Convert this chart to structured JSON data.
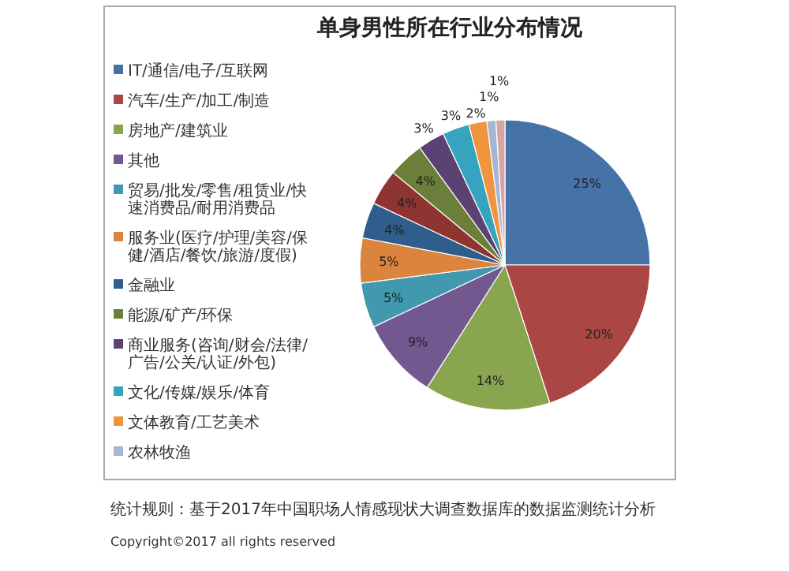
{
  "chart_data": {
    "type": "pie",
    "title": "单身男性所在行业分布情况",
    "legend": "left",
    "value_labels": [
      "25%",
      "20%",
      "14%",
      "9%",
      "5%",
      "5%",
      "4%",
      "4%",
      "4%",
      "3%",
      "3%",
      "2%",
      "1%",
      "1%"
    ],
    "categories": [
      "IT/通信/电子/互联网",
      "汽车/生产/加工/制造",
      "房地产/建筑业",
      "其他",
      "贸易/批发/零售/租赁业/快速消费品/耐用消费品",
      "服务业(医疗/护理/美容/保健/酒店/餐饮/旅游/度假)",
      "金融业",
      null,
      "能源/矿产/环保",
      "商业服务(咨询/财会/法律/广告/公关/认证/外包)",
      "文化/传媒/娱乐/体育",
      "文体教育/工艺美术",
      "农林牧渔",
      null
    ],
    "values": [
      25,
      20,
      14,
      9,
      5,
      5,
      4,
      4,
      4,
      3,
      3,
      2,
      1,
      1
    ],
    "colors": [
      "#4572a7",
      "#aa4643",
      "#89a54e",
      "#71588f",
      "#4198af",
      "#db843d",
      "#2f5d8c",
      "#8e3532",
      "#6b7f3a",
      "#5b4273",
      "#36a3bf",
      "#f0953e",
      "#a5b6d4",
      "#d9a5a4"
    ],
    "annotations": [
      "统计规则：基于2017年中国职场人情感现状大调查数据库的数据监测统计分析",
      "Copyright©2017 all rights reserved"
    ]
  }
}
